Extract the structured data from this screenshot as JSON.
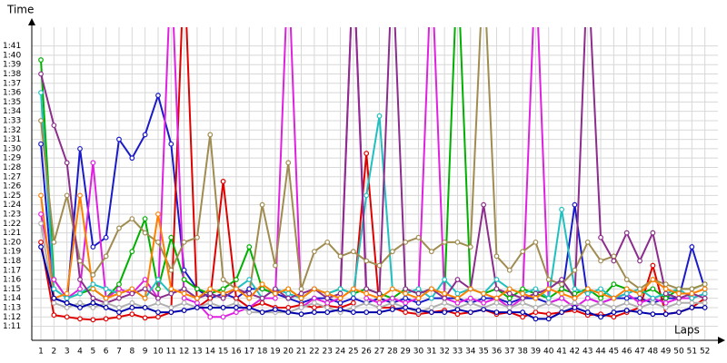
{
  "chart_data": {
    "type": "line",
    "y_title": "Time",
    "x_title": "Laps",
    "x": [
      1,
      2,
      3,
      4,
      5,
      6,
      7,
      8,
      9,
      10,
      11,
      12,
      13,
      14,
      15,
      16,
      17,
      18,
      19,
      20,
      21,
      22,
      23,
      24,
      25,
      26,
      27,
      28,
      29,
      30,
      31,
      32,
      33,
      34,
      35,
      36,
      37,
      38,
      39,
      40,
      41,
      42,
      43,
      44,
      45,
      46,
      47,
      48,
      49,
      50,
      51,
      52
    ],
    "xlim": [
      0.3,
      53
    ],
    "ylim": [
      69.5,
      103
    ],
    "yticks": [
      {
        "value": 71,
        "label": "1:11"
      },
      {
        "value": 72,
        "label": "1:12"
      },
      {
        "value": 73,
        "label": "1:13"
      },
      {
        "value": 74,
        "label": "1:14"
      },
      {
        "value": 75,
        "label": "1:15"
      },
      {
        "value": 76,
        "label": "1:16"
      },
      {
        "value": 77,
        "label": "1:17"
      },
      {
        "value": 78,
        "label": "1:18"
      },
      {
        "value": 79,
        "label": "1:19"
      },
      {
        "value": 80,
        "label": "1:20"
      },
      {
        "value": 81,
        "label": "1:21"
      },
      {
        "value": 82,
        "label": "1:22"
      },
      {
        "value": 83,
        "label": "1:23"
      },
      {
        "value": 84,
        "label": "1:24"
      },
      {
        "value": 85,
        "label": "1:25"
      },
      {
        "value": 86,
        "label": "1:26"
      },
      {
        "value": 87,
        "label": "1:27"
      },
      {
        "value": 88,
        "label": "1:28"
      },
      {
        "value": 89,
        "label": "1:29"
      },
      {
        "value": 90,
        "label": "1:30"
      },
      {
        "value": 91,
        "label": "1:31"
      },
      {
        "value": 92,
        "label": "1:32"
      },
      {
        "value": 93,
        "label": "1:33"
      },
      {
        "value": 94,
        "label": "1:34"
      },
      {
        "value": 95,
        "label": "1:35"
      },
      {
        "value": 96,
        "label": "1:36"
      },
      {
        "value": 97,
        "label": "1:37"
      },
      {
        "value": 98,
        "label": "1:38"
      },
      {
        "value": 99,
        "label": "1:39"
      },
      {
        "value": 100,
        "label": "1:40"
      },
      {
        "value": 101,
        "label": "1:41"
      }
    ],
    "grid": true,
    "series": [
      {
        "color": "#1a1ac8",
        "values": [
          90.5,
          74,
          73.5,
          90,
          79.5,
          80.5,
          91,
          89,
          91.5,
          95.7,
          90.5,
          77,
          75,
          74,
          74.5,
          74,
          75,
          75,
          74.5,
          74,
          73.5,
          74,
          74,
          73.5,
          74,
          73.5,
          74,
          73.5,
          74,
          73.5,
          74,
          74,
          74,
          73.5,
          74,
          74,
          73.5,
          74,
          74,
          73.5,
          74,
          84,
          74,
          73.5,
          74,
          74,
          74,
          73.5,
          74,
          74,
          79.5,
          75
        ]
      },
      {
        "color": "#e00000",
        "values": [
          80,
          72.2,
          72,
          71.8,
          71.7,
          71.8,
          72,
          72.3,
          71.9,
          72,
          72.5,
          110,
          73,
          74,
          86.5,
          74,
          73,
          73.5,
          73,
          73,
          73.3,
          73,
          73.2,
          73,
          73.5,
          89.5,
          73,
          73,
          72.5,
          72.3,
          72.5,
          72.7,
          72.3,
          72.5,
          72.8,
          72.3,
          72.5,
          72,
          72.5,
          72.3,
          72.5,
          72.7,
          72.2,
          72.3,
          72,
          72.5,
          73,
          77.5,
          72.3,
          72.5,
          73,
          74
        ]
      },
      {
        "color": "#00b000",
        "values": [
          99.5,
          76,
          74,
          74.5,
          75,
          74,
          75.5,
          79,
          82.5,
          75,
          80.5,
          76,
          75,
          74.5,
          75,
          76,
          79.5,
          75,
          74.5,
          75,
          74,
          75,
          74.5,
          75,
          74.5,
          75,
          74.5,
          74,
          75,
          74.5,
          75,
          74.5,
          110,
          75,
          74.5,
          75,
          74,
          75,
          74.5,
          74,
          75,
          74.5,
          75,
          74,
          75.5,
          75,
          74.5,
          75,
          74,
          75,
          75,
          75.5
        ]
      },
      {
        "color": "#e020e0",
        "values": [
          83,
          76,
          74,
          75,
          88.5,
          74,
          75,
          74.5,
          76,
          74,
          110,
          74,
          73.5,
          72,
          72,
          72.5,
          73,
          74,
          74,
          110,
          73,
          74,
          73.5,
          74,
          110,
          74,
          73.5,
          74,
          73.5,
          74,
          110,
          74,
          73.5,
          74,
          73.5,
          74,
          73,
          74,
          110,
          73.5,
          74,
          73,
          74,
          73.5,
          74,
          74.5,
          73.5,
          74,
          73.5,
          74,
          74,
          74.5
        ]
      },
      {
        "color": "#20c0c0",
        "values": [
          96,
          75,
          74,
          74.5,
          75.5,
          75,
          74.5,
          75,
          74,
          76,
          74.5,
          75,
          74,
          75,
          74.5,
          75,
          76,
          74,
          75,
          74.5,
          74,
          75,
          74.5,
          75,
          74.5,
          85,
          93.5,
          75,
          74.5,
          75,
          74,
          76,
          74.5,
          75,
          74.5,
          76,
          75,
          74.5,
          75,
          74,
          83.5,
          75,
          74.5,
          75,
          74,
          74.5,
          75,
          74,
          74.5,
          75,
          74,
          74.5
        ]
      },
      {
        "color": "#a08c50",
        "values": [
          93,
          80,
          85,
          78,
          76.5,
          78.5,
          81.5,
          82.5,
          81,
          80,
          77,
          80,
          80.5,
          91.5,
          76,
          75,
          74.5,
          84,
          77.5,
          88.5,
          75,
          79,
          80,
          78.5,
          79,
          78,
          77.5,
          79,
          80,
          80.5,
          79,
          80,
          80,
          79.5,
          110,
          78.5,
          77,
          79,
          80,
          76,
          75.5,
          77,
          80,
          78,
          78.5,
          76,
          75,
          76,
          75.5,
          75,
          75,
          75.5
        ]
      },
      {
        "color": "#8c2c8c",
        "values": [
          98,
          92.5,
          88.5,
          76,
          74,
          73.5,
          74,
          74.5,
          75,
          74,
          74.5,
          75,
          74,
          74.5,
          74,
          75,
          74.5,
          74,
          75,
          74,
          74.5,
          75,
          74,
          74.5,
          110,
          75,
          74.5,
          110,
          75,
          74.5,
          75,
          74,
          76,
          75,
          84,
          75,
          74.5,
          74,
          74.5,
          75,
          76,
          74,
          110,
          80.5,
          78,
          81,
          78,
          81,
          74.5,
          74,
          74.5,
          74
        ]
      },
      {
        "color": "#ff8000",
        "values": [
          85,
          74,
          74.5,
          85,
          75,
          74,
          74.5,
          75,
          74,
          83,
          75,
          74.5,
          74,
          75,
          74.5,
          75,
          74,
          75.5,
          74.5,
          75,
          74,
          75,
          74.5,
          74,
          75,
          74.5,
          74,
          75,
          74.5,
          74,
          75,
          74.5,
          74,
          75,
          74.5,
          74,
          75,
          74.5,
          74,
          75,
          74.5,
          74,
          75,
          74.5,
          74,
          75,
          74.5,
          76,
          75,
          74.5,
          74.5,
          75
        ]
      },
      {
        "color": "#b0b0b0",
        "values": [
          82,
          73.5,
          73,
          73.5,
          73,
          73.5,
          73,
          73.5,
          73,
          73.5,
          73,
          73.5,
          73,
          73.5,
          73,
          73.5,
          72.5,
          72.5,
          72.5,
          72.5,
          73,
          73.5,
          73,
          72.5,
          73,
          73.5,
          73,
          73.5,
          73,
          72.5,
          73,
          73.5,
          73,
          73.5,
          73,
          73.5,
          73,
          73.5,
          73,
          73.5,
          73,
          73.5,
          73,
          73.5,
          73,
          73.5,
          73,
          73.5,
          73,
          73.5,
          73.5,
          73.5
        ]
      },
      {
        "color": "#0000aa",
        "values": [
          79.5,
          74,
          73.5,
          73,
          73.5,
          73,
          72.5,
          73,
          73,
          72.5,
          72.5,
          72.7,
          73,
          73,
          73,
          73,
          73,
          72.5,
          72.8,
          72.5,
          72.3,
          72.5,
          72.5,
          72.8,
          72.5,
          72.5,
          72.5,
          72.8,
          73,
          72.7,
          72.5,
          72.5,
          72.8,
          72.5,
          72.8,
          72.5,
          72.5,
          72.5,
          71.8,
          71.8,
          72.5,
          73,
          72.5,
          72,
          72.5,
          72.7,
          72.5,
          72.3,
          72.3,
          72.5,
          73,
          73
        ]
      }
    ]
  }
}
